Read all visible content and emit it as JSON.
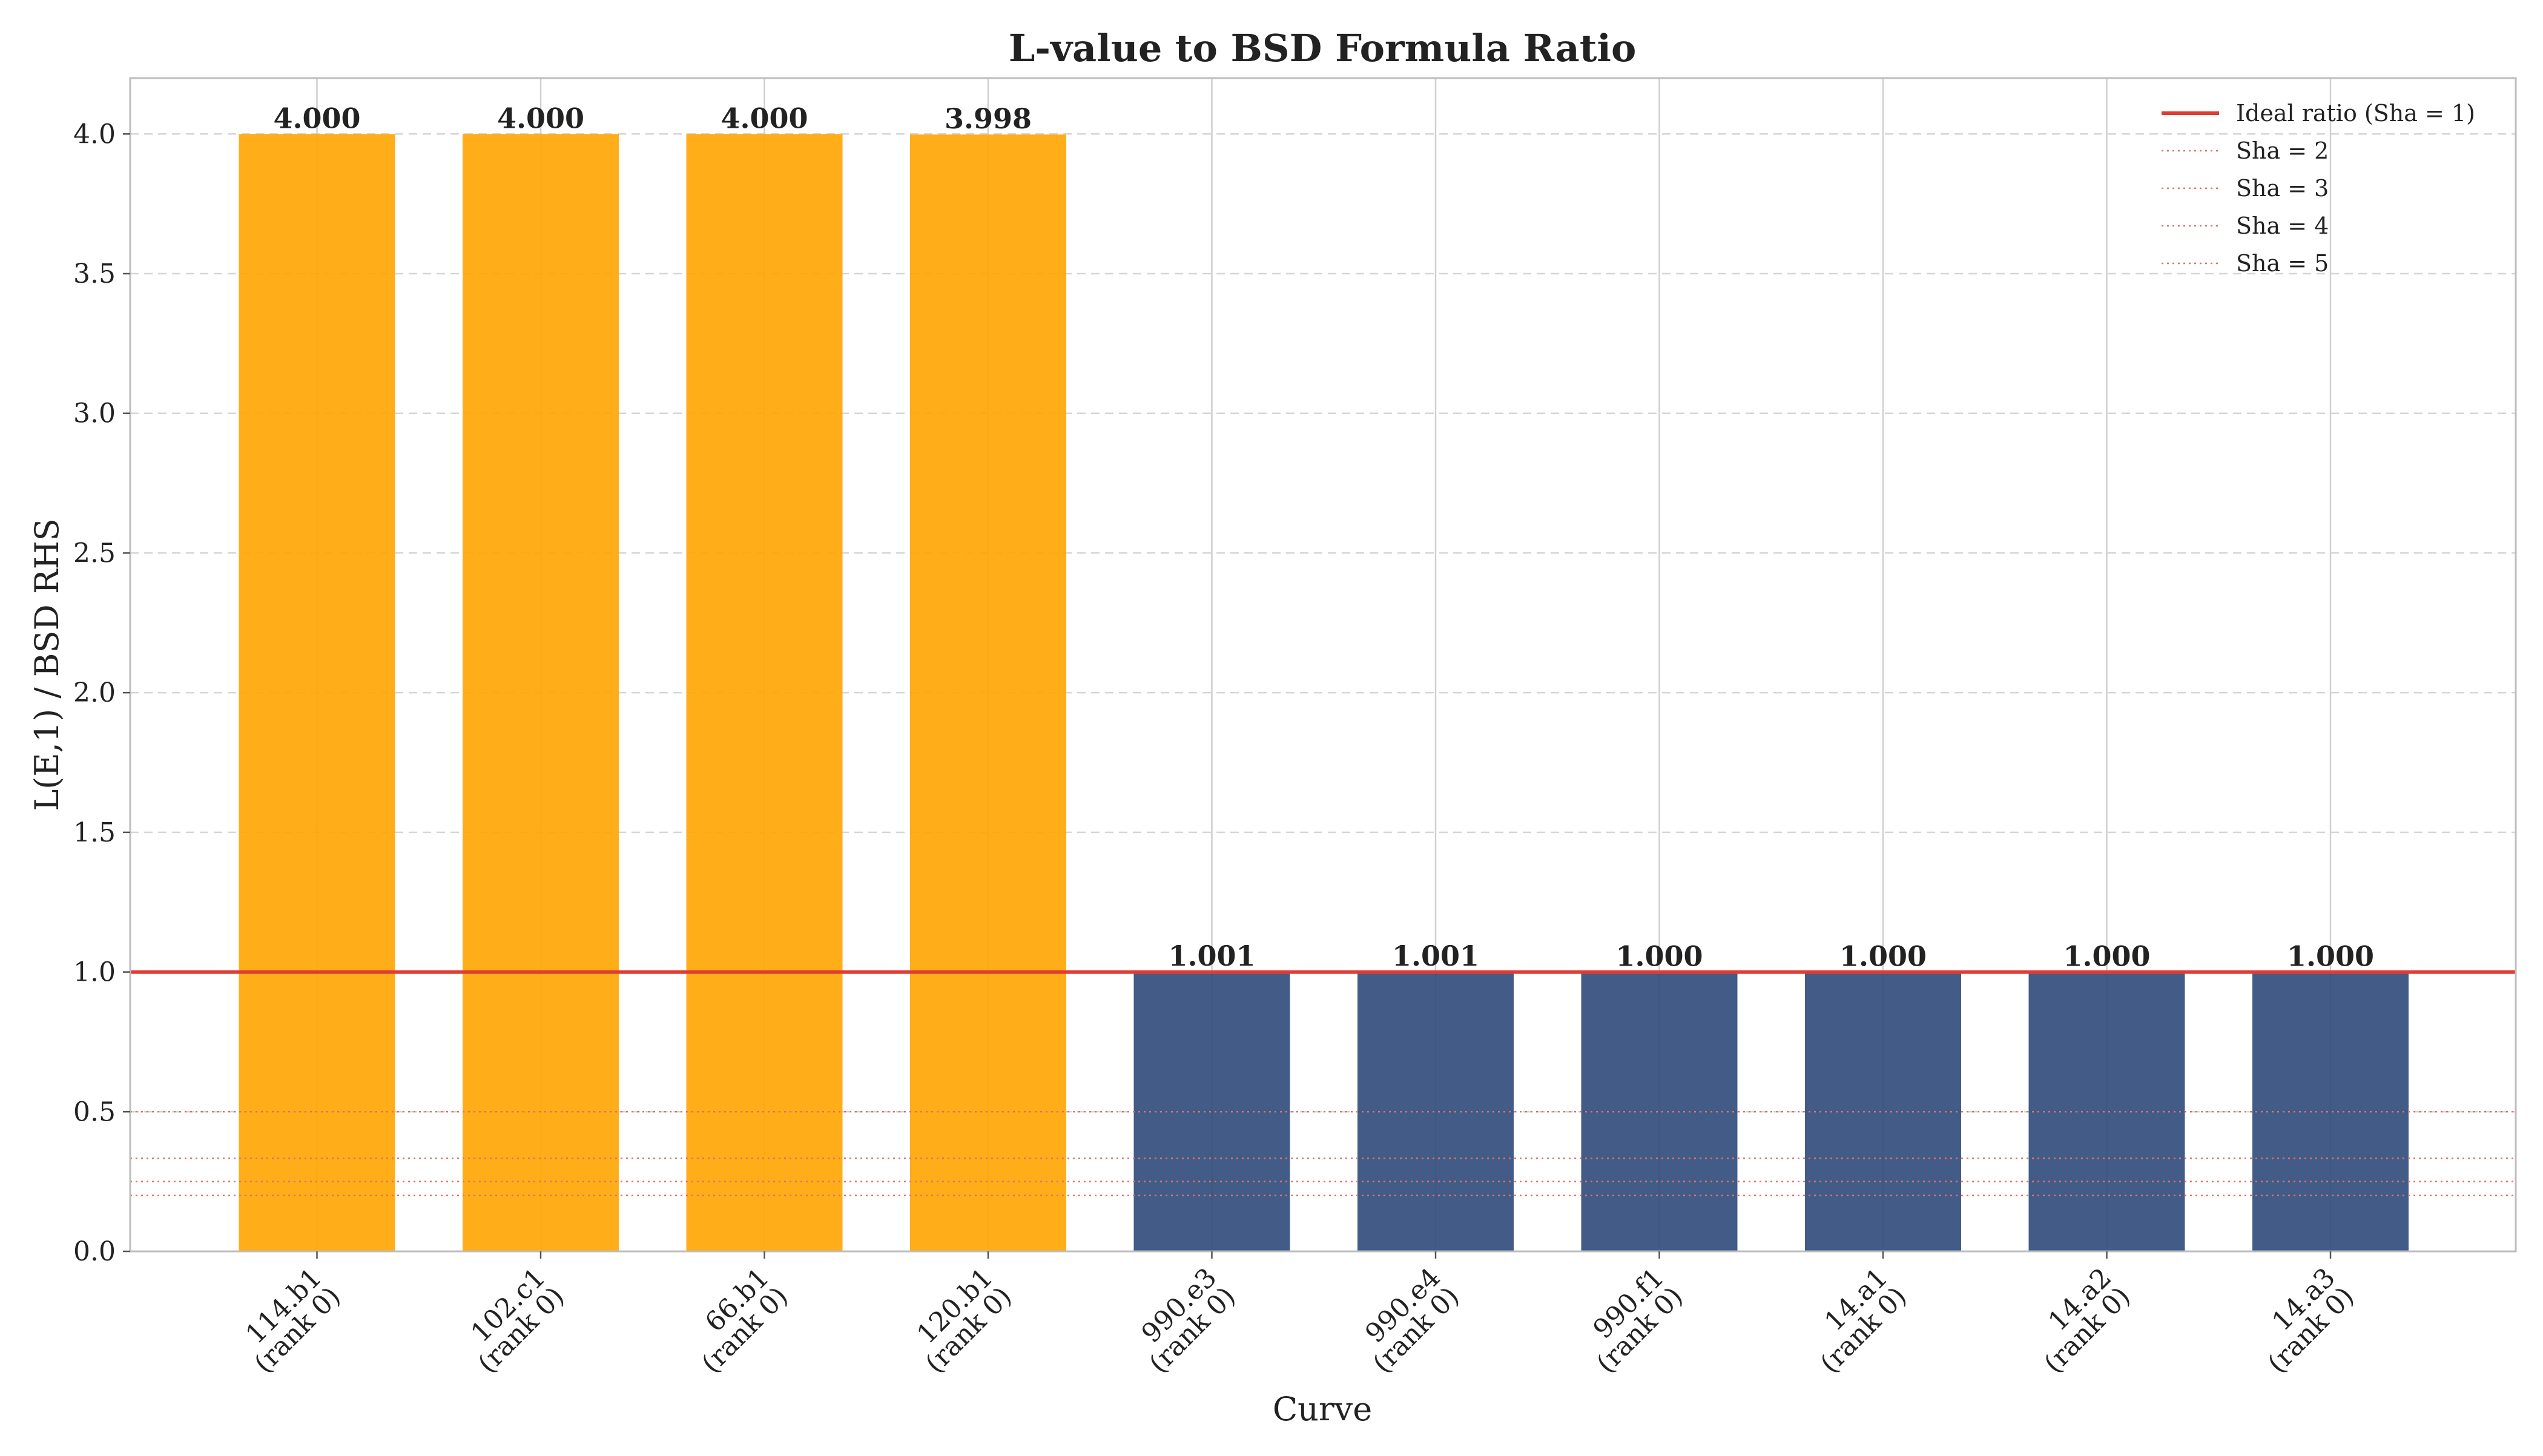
{
  "chart_data": {
    "type": "bar",
    "title": "L-value to BSD Formula Ratio",
    "xlabel": "Curve",
    "ylabel": "L(E,1) / BSD RHS",
    "ylim": [
      0,
      4.2
    ],
    "yticks": [
      "0.0",
      "0.5",
      "1.0",
      "1.5",
      "2.0",
      "2.5",
      "3.0",
      "3.5",
      "4.0"
    ],
    "categories": [
      [
        "114.b1",
        "(rank 0)"
      ],
      [
        "102.c1",
        "(rank 0)"
      ],
      [
        "66.b1",
        "(rank 0)"
      ],
      [
        "120.b1",
        "(rank 0)"
      ],
      [
        "990.e3",
        "(rank 0)"
      ],
      [
        "990.e4",
        "(rank 0)"
      ],
      [
        "990.f1",
        "(rank 0)"
      ],
      [
        "14.a1",
        "(rank 0)"
      ],
      [
        "14.a2",
        "(rank 0)"
      ],
      [
        "14.a3",
        "(rank 0)"
      ]
    ],
    "values": [
      4.0,
      4.0,
      4.0,
      3.998,
      1.001,
      1.001,
      1.0,
      1.0,
      1.0,
      1.0
    ],
    "value_labels": [
      "4.000",
      "4.000",
      "4.000",
      "3.998",
      "1.001",
      "1.001",
      "1.000",
      "1.000",
      "1.000",
      "1.000"
    ],
    "bar_colors": [
      "#ffa500",
      "#ffa500",
      "#ffa500",
      "#ffa500",
      "#2e4a7a",
      "#2e4a7a",
      "#2e4a7a",
      "#2e4a7a",
      "#2e4a7a",
      "#2e4a7a"
    ],
    "reference_lines": [
      {
        "label": "Ideal ratio (Sha = 1)",
        "y": 1.0,
        "style": "solid",
        "color": "#e03c31"
      },
      {
        "label": "Sha = 2",
        "y": 0.5,
        "style": "dotted",
        "color": "#e07070"
      },
      {
        "label": "Sha = 3",
        "y": 0.3333,
        "style": "dotted",
        "color": "#e07070"
      },
      {
        "label": "Sha = 4",
        "y": 0.25,
        "style": "dotted",
        "color": "#e07070"
      },
      {
        "label": "Sha = 5",
        "y": 0.2,
        "style": "dotted",
        "color": "#e07070"
      }
    ],
    "legend_position": "top-right",
    "grid": true
  }
}
